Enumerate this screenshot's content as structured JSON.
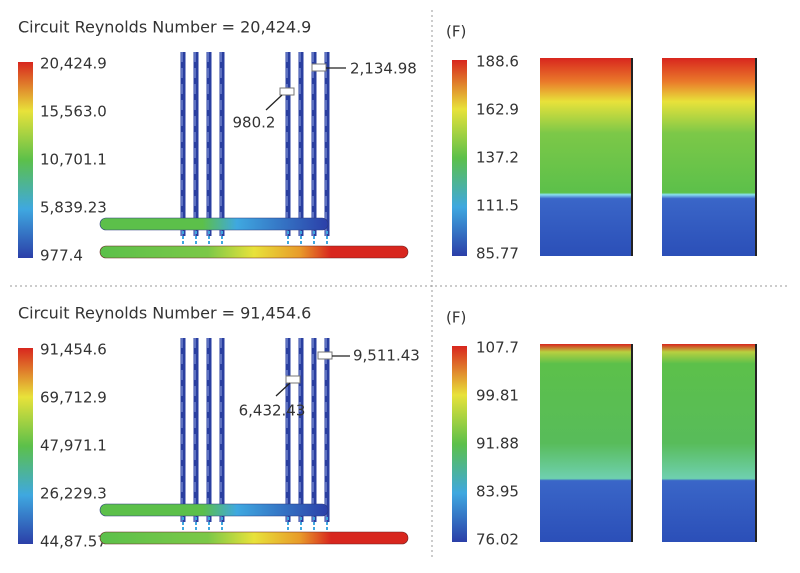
{
  "panels": [
    {
      "title": "Circuit Reynolds Number = 20,424.9",
      "scale": [
        "20,424.9",
        "15,563.0",
        "10,701.1",
        "5,839.23",
        "977.4"
      ],
      "annotations": [
        "2,134.98",
        "980.2"
      ]
    },
    {
      "label": "(F)",
      "scale": [
        "188.6",
        "162.9",
        "137.2",
        "111.5",
        "85.77"
      ]
    },
    {
      "title": "Circuit Reynolds Number = 91,454.6",
      "scale": [
        "91,454.6",
        "69,712.9",
        "47,971.1",
        "26,229.3",
        "44,87.57"
      ],
      "annotations": [
        "9,511.43",
        "6,432.43"
      ]
    },
    {
      "label": "(F)",
      "scale": [
        "107.7",
        "99.81",
        "91.88",
        "83.95",
        "76.02"
      ]
    }
  ]
}
